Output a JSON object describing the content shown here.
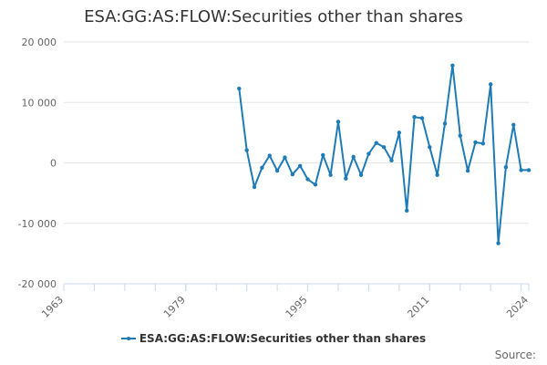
{
  "chart": {
    "title": "ESA:GG:AS:FLOW:Securities other than shares",
    "credits": "Source:",
    "series_color": "#1f7bb6"
  },
  "chart_data": {
    "type": "line",
    "title": "ESA:GG:AS:FLOW:Securities other than shares",
    "xlabel": "",
    "ylabel": "",
    "xlim": [
      1963,
      2024
    ],
    "ylim": [
      -20000,
      20000
    ],
    "x_ticks": [
      1963,
      1979,
      1995,
      2011,
      2024
    ],
    "x_tick_labels": [
      "1963",
      "1979",
      "1995",
      "2011",
      "2024"
    ],
    "y_ticks": [
      -20000,
      -10000,
      0,
      10000,
      20000
    ],
    "y_tick_labels": [
      "-20 000",
      "-10 000",
      "0",
      "10 000",
      "20 000"
    ],
    "grid": true,
    "legend_position": "bottom",
    "series": [
      {
        "name": "ESA:GG:AS:FLOW:Securities other than shares",
        "x": [
          1986,
          1987,
          1988,
          1989,
          1990,
          1991,
          1992,
          1993,
          1994,
          1995,
          1996,
          1997,
          1998,
          1999,
          2000,
          2001,
          2002,
          2003,
          2004,
          2005,
          2006,
          2007,
          2008,
          2009,
          2010,
          2011,
          2012,
          2013,
          2014,
          2015,
          2016,
          2017,
          2018,
          2019,
          2020,
          2021,
          2022,
          2023,
          2024
        ],
        "values": [
          12300,
          2100,
          -4000,
          -800,
          1200,
          -1300,
          900,
          -1900,
          -500,
          -2700,
          -3600,
          1300,
          -2000,
          6800,
          -2600,
          1000,
          -2000,
          1500,
          3300,
          2600,
          400,
          5000,
          -7900,
          7600,
          7400,
          2600,
          -2000,
          6500,
          16100,
          4500,
          -1300,
          3400,
          3200,
          13000,
          -13300,
          -700,
          6300,
          -1200,
          -1200
        ]
      }
    ]
  }
}
